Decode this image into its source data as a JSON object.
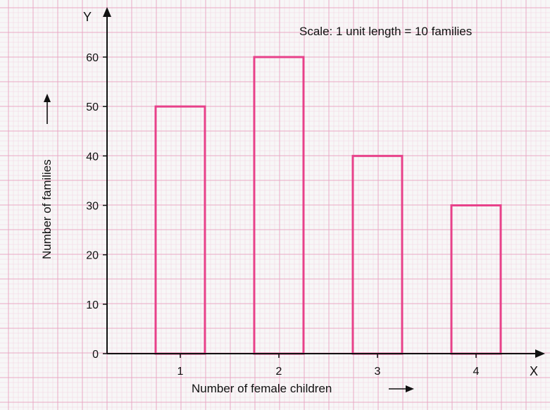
{
  "chart_data": {
    "type": "bar",
    "categories": [
      "1",
      "2",
      "3",
      "4"
    ],
    "values": [
      50,
      60,
      40,
      30
    ],
    "xlabel": "Number of female children",
    "ylabel": "Number of families",
    "x_axis_letter": "X",
    "y_axis_letter": "Y",
    "annotation": "Scale: 1 unit length = 10 families",
    "y_ticks": [
      0,
      10,
      20,
      30,
      40,
      50,
      60
    ],
    "ylim": [
      0,
      60
    ],
    "grid": true,
    "bar_style": "outline",
    "colors": {
      "bar_outline": "#e8418a",
      "grid_major": "#e9a9c4",
      "grid_minor": "#f3d6e2",
      "background": "#f7f7f7",
      "axis": "#111111"
    }
  }
}
